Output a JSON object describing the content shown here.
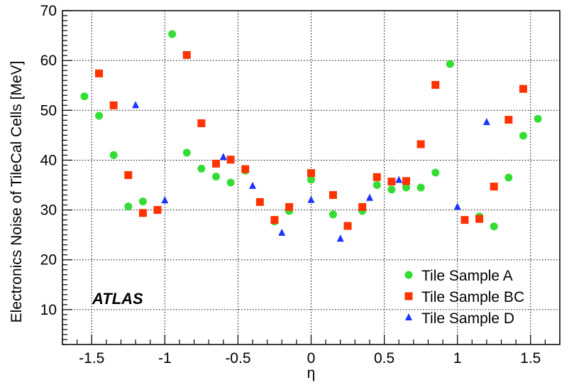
{
  "chart_data": {
    "type": "scatter",
    "title": "",
    "xlabel": "η",
    "ylabel": "Electronics Noise of TileCal Cells [MeV]",
    "xlim": [
      -1.7,
      1.7
    ],
    "ylim": [
      3,
      70
    ],
    "x_ticks": [
      -1.5,
      -1,
      -0.5,
      0,
      0.5,
      1,
      1.5
    ],
    "x_tick_labels": [
      "-1.5",
      "-1",
      "-0.5",
      "0",
      "0.5",
      "1",
      "1.5"
    ],
    "y_ticks": [
      10,
      20,
      30,
      40,
      50,
      60,
      70
    ],
    "y_tick_labels": [
      "10",
      "20",
      "30",
      "40",
      "50",
      "60",
      "70"
    ],
    "grid": true,
    "legend_position": "bottom-right",
    "annotation": "ATLAS",
    "series": [
      {
        "name": "Tile Sample A",
        "marker": "circle",
        "color": "#33dd33",
        "points": [
          [
            -1.55,
            52.8
          ],
          [
            -1.45,
            48.9
          ],
          [
            -1.35,
            41.0
          ],
          [
            -1.25,
            30.7
          ],
          [
            -1.15,
            31.7
          ],
          [
            -0.95,
            65.3
          ],
          [
            -0.85,
            41.5
          ],
          [
            -0.75,
            38.3
          ],
          [
            -0.65,
            36.7
          ],
          [
            -0.55,
            35.5
          ],
          [
            -0.45,
            37.9
          ],
          [
            -0.25,
            27.7
          ],
          [
            -0.15,
            29.8
          ],
          [
            0.0,
            36.1
          ],
          [
            0.15,
            29.1
          ],
          [
            0.35,
            29.8
          ],
          [
            0.45,
            35.0
          ],
          [
            0.55,
            34.1
          ],
          [
            0.65,
            34.5
          ],
          [
            0.75,
            34.5
          ],
          [
            0.85,
            37.5
          ],
          [
            0.95,
            59.3
          ],
          [
            1.15,
            28.7
          ],
          [
            1.25,
            26.7
          ],
          [
            1.35,
            36.5
          ],
          [
            1.45,
            44.9
          ],
          [
            1.55,
            48.3
          ]
        ]
      },
      {
        "name": "Tile Sample BC",
        "marker": "square",
        "color": "#ff3300",
        "points": [
          [
            -1.45,
            57.4
          ],
          [
            -1.35,
            51.0
          ],
          [
            -1.25,
            37.0
          ],
          [
            -1.15,
            29.4
          ],
          [
            -1.05,
            30.0
          ],
          [
            -0.85,
            61.1
          ],
          [
            -0.75,
            47.4
          ],
          [
            -0.65,
            39.3
          ],
          [
            -0.55,
            40.1
          ],
          [
            -0.45,
            38.2
          ],
          [
            -0.35,
            31.6
          ],
          [
            -0.25,
            28.0
          ],
          [
            -0.15,
            30.6
          ],
          [
            0.0,
            37.4
          ],
          [
            0.15,
            33.0
          ],
          [
            0.25,
            26.8
          ],
          [
            0.35,
            30.6
          ],
          [
            0.45,
            36.6
          ],
          [
            0.55,
            35.7
          ],
          [
            0.65,
            35.8
          ],
          [
            0.75,
            43.2
          ],
          [
            0.85,
            55.1
          ],
          [
            1.05,
            28.0
          ],
          [
            1.15,
            28.2
          ],
          [
            1.25,
            34.7
          ],
          [
            1.35,
            48.1
          ],
          [
            1.45,
            54.3
          ]
        ]
      },
      {
        "name": "Tile Sample D",
        "marker": "triangle",
        "color": "#1a33ff",
        "points": [
          [
            -1.2,
            51.0
          ],
          [
            -1.0,
            31.9
          ],
          [
            -0.6,
            40.6
          ],
          [
            -0.4,
            34.8
          ],
          [
            -0.2,
            25.4
          ],
          [
            0.0,
            32.0
          ],
          [
            0.2,
            24.2
          ],
          [
            0.4,
            32.4
          ],
          [
            0.6,
            36.0
          ],
          [
            1.0,
            30.6
          ],
          [
            1.2,
            47.6
          ]
        ]
      }
    ]
  }
}
